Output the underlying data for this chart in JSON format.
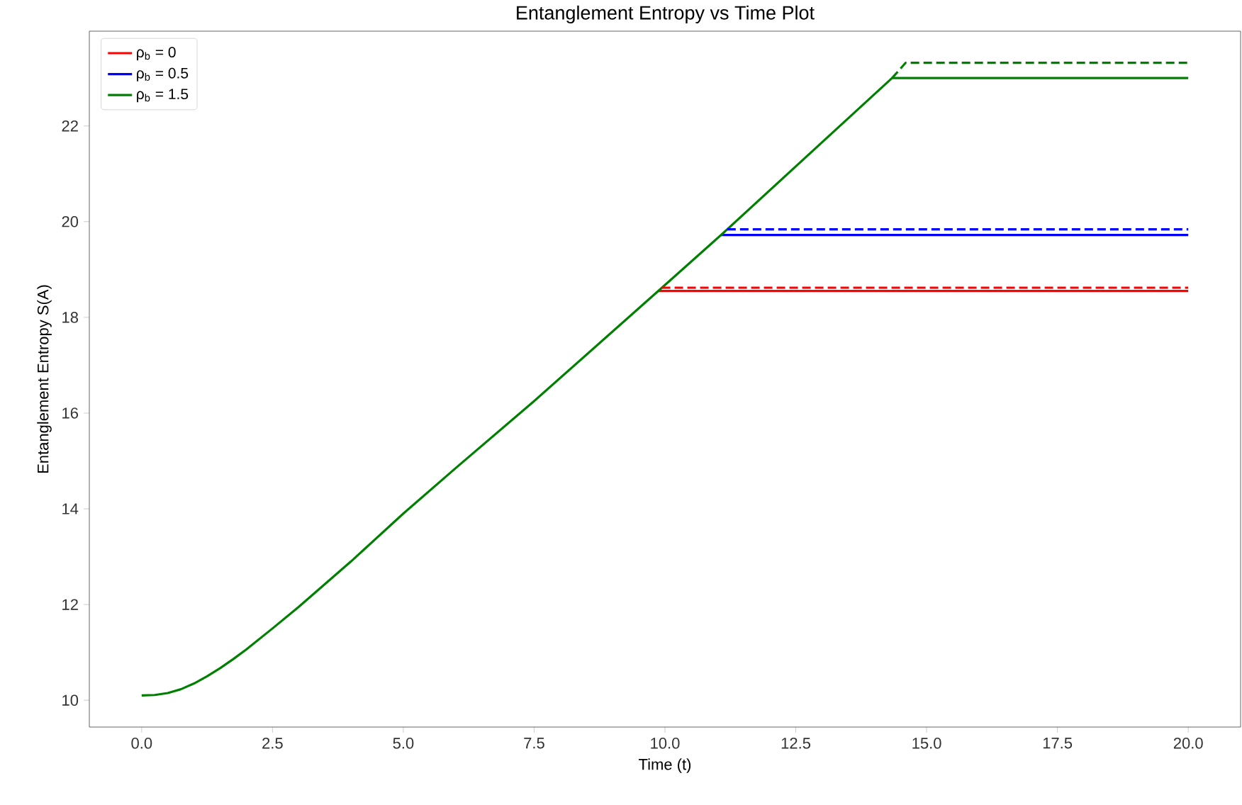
{
  "chart_data": {
    "type": "line",
    "title": "Entanglement Entropy vs Time Plot",
    "xlabel": "Time (t)",
    "ylabel": "Entanglement Entropy S(A)",
    "xlim": [
      -1,
      21
    ],
    "ylim": [
      9.44,
      23.98
    ],
    "xticks": [
      {
        "value": 0,
        "label": "0.0"
      },
      {
        "value": 2.5,
        "label": "2.5"
      },
      {
        "value": 5,
        "label": "5.0"
      },
      {
        "value": 7.5,
        "label": "7.5"
      },
      {
        "value": 10,
        "label": "10.0"
      },
      {
        "value": 12.5,
        "label": "12.5"
      },
      {
        "value": 15,
        "label": "15.0"
      },
      {
        "value": 17.5,
        "label": "17.5"
      },
      {
        "value": 20,
        "label": "20.0"
      }
    ],
    "yticks": [
      10,
      12,
      14,
      16,
      18,
      20,
      22
    ],
    "legend": "top left",
    "grid": false,
    "series": [
      {
        "name": "ρ$_{b}$ = 0",
        "color": "#ff0000",
        "line_style": "solid",
        "x": [
          9.87,
          20
        ],
        "values": [
          18.55,
          18.55
        ]
      },
      {
        "name": "ρ$_{b}$ = 0.5",
        "color": "#0000ff",
        "line_style": "solid",
        "x": [
          11.07,
          20
        ],
        "values": [
          19.72,
          19.72
        ]
      },
      {
        "name": "ρ$_{b}$ = 1.5",
        "color": "#008000",
        "line_style": "solid",
        "x": [
          0,
          0.25,
          0.5,
          0.75,
          1.0,
          1.25,
          1.5,
          1.75,
          2.0,
          2.5,
          3.0,
          4.0,
          5.0,
          6.0,
          7.5,
          9.87,
          11.07,
          14.34,
          20
        ],
        "values": [
          10.1,
          10.11,
          10.15,
          10.23,
          10.35,
          10.5,
          10.67,
          10.86,
          11.06,
          11.5,
          11.95,
          12.9,
          13.9,
          14.85,
          16.25,
          18.55,
          19.72,
          23.0,
          23.0
        ]
      },
      {
        "color": "#ff0000",
        "line_style": "dashed",
        "x": [
          9.94,
          20
        ],
        "values": [
          18.62,
          18.62
        ]
      },
      {
        "color": "#0000ff",
        "line_style": "dashed",
        "x": [
          11.19,
          20
        ],
        "values": [
          19.84,
          19.84
        ]
      },
      {
        "color": "#008000",
        "line_style": "dashed",
        "x": [
          14.34,
          14.6,
          20
        ],
        "values": [
          23.0,
          23.32,
          23.32
        ]
      }
    ]
  }
}
